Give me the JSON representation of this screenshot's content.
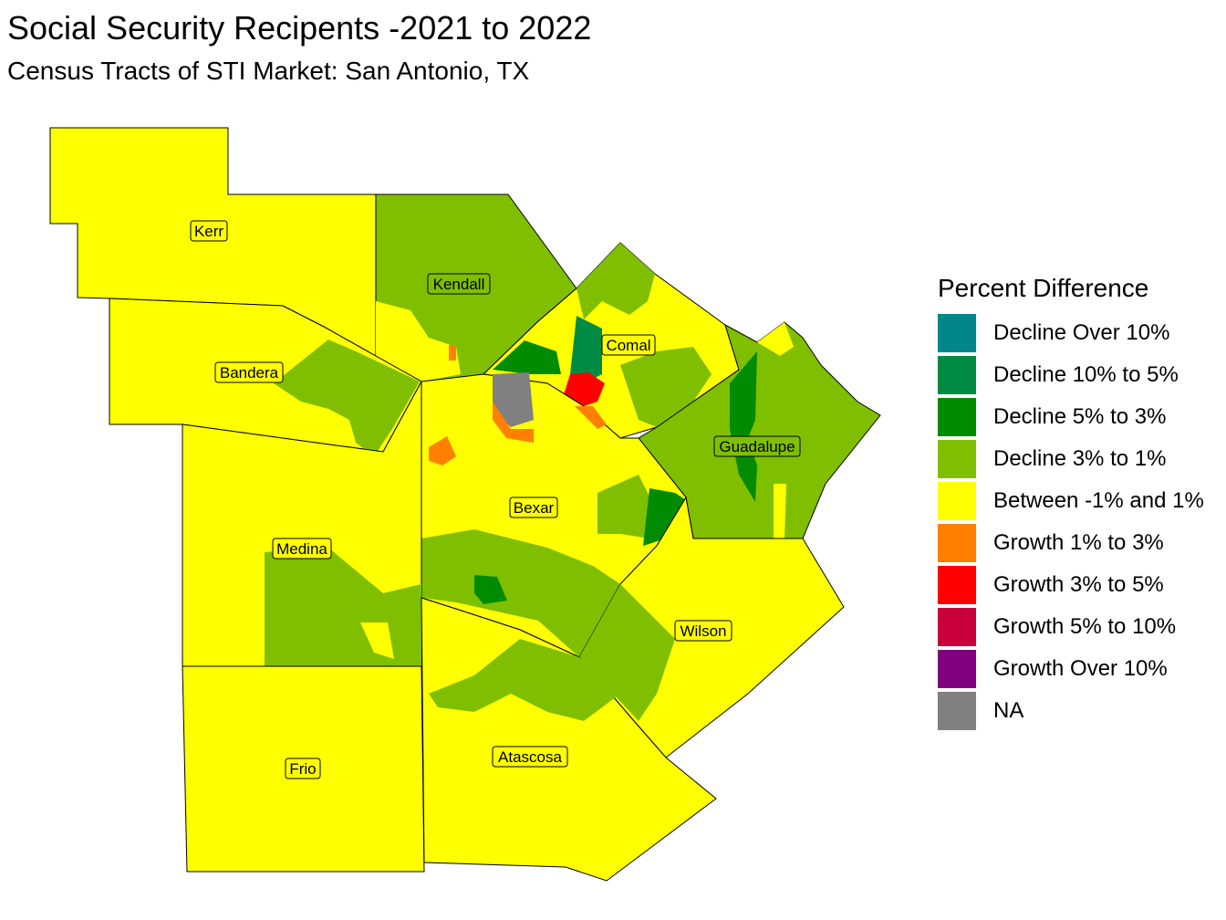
{
  "title": "Social Security Recipents -2021 to 2022",
  "subtitle": "Census Tracts of STI Market: San Antonio, TX",
  "legend": {
    "title": "Percent Difference",
    "items": [
      {
        "label": "Decline Over 10%",
        "color": "#00868B"
      },
      {
        "label": "Decline 10% to 5%",
        "color": "#008B45"
      },
      {
        "label": "Decline 5% to 3%",
        "color": "#008B00"
      },
      {
        "label": "Decline 3% to 1%",
        "color": "#7FBF00"
      },
      {
        "label": "Between -1% and 1%",
        "color": "#FFFF00"
      },
      {
        "label": "Growth 1% to 3%",
        "color": "#FF8000"
      },
      {
        "label": "Growth 3% to 5%",
        "color": "#FF0000"
      },
      {
        "label": "Growth 5% to 10%",
        "color": "#C8003C"
      },
      {
        "label": "Growth Over 10%",
        "color": "#800080"
      },
      {
        "label": "NA",
        "color": "#808080"
      }
    ]
  },
  "counties": {
    "kerr": "Kerr",
    "kendall": "Kendall",
    "bandera": "Bandera",
    "comal": "Comal",
    "guadalupe": "Guadalupe",
    "bexar": "Bexar",
    "medina": "Medina",
    "wilson": "Wilson",
    "frio": "Frio",
    "atascosa": "Atascosa"
  }
}
